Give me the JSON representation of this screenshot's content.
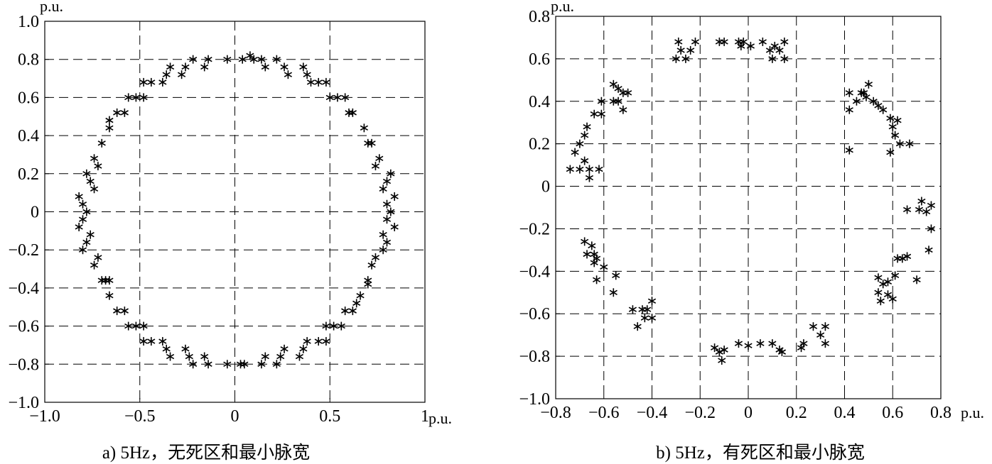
{
  "chart_data": [
    {
      "type": "scatter",
      "caption": "a) 5Hz，无死区和最小脉宽",
      "xunit": "p.u.",
      "yunit": "p.u.",
      "xlim": [
        -1.0,
        1.0
      ],
      "ylim": [
        -1.0,
        1.0
      ],
      "xticks": [
        -1.0,
        -0.5,
        0,
        0.5,
        1.0
      ],
      "xtick_labels": [
        "−1.0",
        "−0.5",
        "0",
        "0.5",
        "1"
      ],
      "yticks": [
        1.0,
        0.8,
        0.6,
        0.4,
        0.2,
        0,
        -0.2,
        -0.4,
        -0.6,
        -0.8,
        -1.0
      ],
      "ytick_labels": [
        "1.0",
        "0.8",
        "0.6",
        "0.4",
        "0.2",
        "0",
        "−0.2",
        "−0.4",
        "−0.6",
        "−0.8",
        "−1.0"
      ],
      "grid": true,
      "marker": "*",
      "points": [
        [
          0.08,
          0.82
        ],
        [
          0.04,
          0.8
        ],
        [
          -0.04,
          0.8
        ],
        [
          -0.14,
          0.8
        ],
        [
          -0.22,
          0.8
        ],
        [
          -0.16,
          0.76
        ],
        [
          -0.26,
          0.76
        ],
        [
          -0.28,
          0.72
        ],
        [
          -0.34,
          0.76
        ],
        [
          -0.36,
          0.72
        ],
        [
          -0.38,
          0.68
        ],
        [
          -0.44,
          0.68
        ],
        [
          -0.48,
          0.68
        ],
        [
          -0.48,
          0.6
        ],
        [
          -0.52,
          0.6
        ],
        [
          -0.56,
          0.6
        ],
        [
          -0.58,
          0.52
        ],
        [
          -0.62,
          0.52
        ],
        [
          -0.66,
          0.48
        ],
        [
          -0.66,
          0.44
        ],
        [
          -0.7,
          0.36
        ],
        [
          -0.74,
          0.28
        ],
        [
          -0.72,
          0.24
        ],
        [
          -0.78,
          0.2
        ],
        [
          -0.76,
          0.16
        ],
        [
          -0.74,
          0.12
        ],
        [
          -0.82,
          0.08
        ],
        [
          -0.8,
          0.04
        ],
        [
          -0.78,
          0.0
        ],
        [
          -0.8,
          -0.04
        ],
        [
          -0.82,
          -0.08
        ],
        [
          -0.76,
          -0.12
        ],
        [
          -0.78,
          -0.16
        ],
        [
          -0.8,
          -0.2
        ],
        [
          -0.72,
          -0.24
        ],
        [
          -0.74,
          -0.28
        ],
        [
          -0.7,
          -0.36
        ],
        [
          -0.68,
          -0.36
        ],
        [
          -0.66,
          -0.36
        ],
        [
          -0.66,
          -0.44
        ],
        [
          -0.62,
          -0.52
        ],
        [
          -0.58,
          -0.52
        ],
        [
          -0.56,
          -0.6
        ],
        [
          -0.52,
          -0.6
        ],
        [
          -0.48,
          -0.6
        ],
        [
          -0.48,
          -0.68
        ],
        [
          -0.44,
          -0.68
        ],
        [
          -0.38,
          -0.68
        ],
        [
          -0.36,
          -0.72
        ],
        [
          -0.34,
          -0.76
        ],
        [
          -0.26,
          -0.72
        ],
        [
          -0.24,
          -0.76
        ],
        [
          -0.22,
          -0.8
        ],
        [
          -0.16,
          -0.76
        ],
        [
          -0.14,
          -0.8
        ],
        [
          -0.04,
          -0.8
        ],
        [
          0.03,
          -0.8
        ],
        [
          0.05,
          -0.8
        ],
        [
          0.14,
          -0.8
        ],
        [
          0.16,
          -0.76
        ],
        [
          0.22,
          -0.8
        ],
        [
          0.24,
          -0.76
        ],
        [
          0.26,
          -0.72
        ],
        [
          0.34,
          -0.76
        ],
        [
          0.36,
          -0.72
        ],
        [
          0.38,
          -0.68
        ],
        [
          0.44,
          -0.68
        ],
        [
          0.48,
          -0.68
        ],
        [
          0.48,
          -0.6
        ],
        [
          0.52,
          -0.6
        ],
        [
          0.56,
          -0.6
        ],
        [
          0.58,
          -0.52
        ],
        [
          0.62,
          -0.52
        ],
        [
          0.64,
          -0.48
        ],
        [
          0.66,
          -0.44
        ],
        [
          0.7,
          -0.36
        ],
        [
          0.7,
          -0.38
        ],
        [
          0.72,
          -0.28
        ],
        [
          0.74,
          -0.24
        ],
        [
          0.78,
          -0.2
        ],
        [
          0.8,
          -0.16
        ],
        [
          0.78,
          -0.12
        ],
        [
          0.84,
          -0.08
        ],
        [
          0.8,
          -0.04
        ],
        [
          0.82,
          0.0
        ],
        [
          0.8,
          0.04
        ],
        [
          0.84,
          0.08
        ],
        [
          0.78,
          0.12
        ],
        [
          0.8,
          0.16
        ],
        [
          0.82,
          0.2
        ],
        [
          0.74,
          0.24
        ],
        [
          0.76,
          0.28
        ],
        [
          0.7,
          0.36
        ],
        [
          0.72,
          0.36
        ],
        [
          0.68,
          0.44
        ],
        [
          0.62,
          0.52
        ],
        [
          0.6,
          0.52
        ],
        [
          0.58,
          0.6
        ],
        [
          0.54,
          0.6
        ],
        [
          0.5,
          0.6
        ],
        [
          0.48,
          0.68
        ],
        [
          0.44,
          0.68
        ],
        [
          0.4,
          0.68
        ],
        [
          0.38,
          0.72
        ],
        [
          0.36,
          0.76
        ],
        [
          0.28,
          0.72
        ],
        [
          0.26,
          0.76
        ],
        [
          0.22,
          0.8
        ],
        [
          0.16,
          0.76
        ],
        [
          0.14,
          0.8
        ],
        [
          0.1,
          0.8
        ]
      ]
    },
    {
      "type": "scatter",
      "caption": "b) 5Hz，有死区和最小脉宽",
      "xunit": "p.u.",
      "yunit": "p.u.",
      "xlim": [
        -0.8,
        0.8
      ],
      "ylim": [
        -1.0,
        0.8
      ],
      "xticks": [
        -0.8,
        -0.6,
        -0.4,
        -0.2,
        0,
        0.2,
        0.4,
        0.6,
        0.8
      ],
      "xtick_labels": [
        "−0.8",
        "−0.6",
        "−0.4",
        "−0.2",
        "0",
        "0.2",
        "0.4",
        "0.6",
        "0.8"
      ],
      "yticks": [
        0.8,
        0.6,
        0.4,
        0.2,
        0,
        -0.2,
        -0.4,
        -0.6,
        -0.8,
        -1.0
      ],
      "ytick_labels": [
        "0.8",
        "0.6",
        "0.4",
        "0.2",
        "0",
        "−0.2",
        "−0.4",
        "−0.6",
        "−0.8",
        "−1.0"
      ],
      "grid": true,
      "marker": "*",
      "points": [
        [
          -0.29,
          0.68
        ],
        [
          -0.28,
          0.64
        ],
        [
          -0.3,
          0.6
        ],
        [
          -0.26,
          0.6
        ],
        [
          -0.24,
          0.64
        ],
        [
          -0.22,
          0.68
        ],
        [
          -0.12,
          0.68
        ],
        [
          -0.1,
          0.68
        ],
        [
          -0.04,
          0.68
        ],
        [
          -0.02,
          0.68
        ],
        [
          -0.03,
          0.66
        ],
        [
          0.01,
          0.66
        ],
        [
          0.06,
          0.68
        ],
        [
          0.09,
          0.64
        ],
        [
          0.11,
          0.66
        ],
        [
          0.13,
          0.64
        ],
        [
          0.15,
          0.68
        ],
        [
          0.1,
          0.6
        ],
        [
          0.15,
          0.6
        ],
        [
          -0.56,
          0.48
        ],
        [
          -0.54,
          0.46
        ],
        [
          -0.52,
          0.44
        ],
        [
          -0.5,
          0.44
        ],
        [
          -0.54,
          0.4
        ],
        [
          -0.56,
          0.4
        ],
        [
          -0.61,
          0.4
        ],
        [
          -0.52,
          0.36
        ],
        [
          -0.64,
          0.34
        ],
        [
          -0.61,
          0.34
        ],
        [
          -0.67,
          0.28
        ],
        [
          -0.68,
          0.24
        ],
        [
          -0.7,
          0.2
        ],
        [
          -0.72,
          0.16
        ],
        [
          -0.68,
          0.12
        ],
        [
          -0.74,
          0.08
        ],
        [
          -0.7,
          0.08
        ],
        [
          -0.66,
          0.08
        ],
        [
          -0.62,
          0.08
        ],
        [
          -0.66,
          0.04
        ],
        [
          0.42,
          0.44
        ],
        [
          0.45,
          0.4
        ],
        [
          0.47,
          0.44
        ],
        [
          0.49,
          0.42
        ],
        [
          0.5,
          0.48
        ],
        [
          0.48,
          0.44
        ],
        [
          0.52,
          0.4
        ],
        [
          0.54,
          0.38
        ],
        [
          0.56,
          0.36
        ],
        [
          0.59,
          0.32
        ],
        [
          0.62,
          0.31
        ],
        [
          0.6,
          0.28
        ],
        [
          0.61,
          0.24
        ],
        [
          0.63,
          0.2
        ],
        [
          0.67,
          0.2
        ],
        [
          0.59,
          0.16
        ],
        [
          0.42,
          0.36
        ],
        [
          0.42,
          0.17
        ],
        [
          -0.68,
          -0.26
        ],
        [
          -0.65,
          -0.28
        ],
        [
          -0.67,
          -0.32
        ],
        [
          -0.64,
          -0.32
        ],
        [
          -0.63,
          -0.34
        ],
        [
          -0.64,
          -0.36
        ],
        [
          -0.6,
          -0.38
        ],
        [
          -0.55,
          -0.42
        ],
        [
          -0.63,
          -0.44
        ],
        [
          -0.56,
          -0.5
        ],
        [
          -0.48,
          -0.58
        ],
        [
          -0.4,
          -0.54
        ],
        [
          -0.42,
          -0.58
        ],
        [
          -0.44,
          -0.58
        ],
        [
          -0.43,
          -0.62
        ],
        [
          -0.4,
          -0.62
        ],
        [
          -0.46,
          -0.66
        ],
        [
          0.66,
          -0.11
        ],
        [
          0.71,
          -0.11
        ],
        [
          0.74,
          -0.12
        ],
        [
          0.72,
          -0.07
        ],
        [
          0.76,
          -0.09
        ],
        [
          0.76,
          -0.2
        ],
        [
          0.75,
          -0.3
        ],
        [
          0.62,
          -0.34
        ],
        [
          0.64,
          -0.34
        ],
        [
          0.66,
          -0.33
        ],
        [
          0.61,
          -0.42
        ],
        [
          0.54,
          -0.43
        ],
        [
          0.56,
          -0.46
        ],
        [
          0.58,
          -0.45
        ],
        [
          0.54,
          -0.5
        ],
        [
          0.58,
          -0.51
        ],
        [
          0.55,
          -0.54
        ],
        [
          0.6,
          -0.53
        ],
        [
          0.7,
          -0.44
        ],
        [
          -0.14,
          -0.76
        ],
        [
          -0.12,
          -0.78
        ],
        [
          -0.1,
          -0.77
        ],
        [
          -0.11,
          -0.82
        ],
        [
          -0.04,
          -0.74
        ],
        [
          0.0,
          -0.75
        ],
        [
          0.05,
          -0.74
        ],
        [
          0.1,
          -0.74
        ],
        [
          0.13,
          -0.77
        ],
        [
          0.14,
          -0.78
        ],
        [
          0.22,
          -0.76
        ],
        [
          0.23,
          -0.74
        ],
        [
          0.27,
          -0.66
        ],
        [
          0.3,
          -0.7
        ],
        [
          0.32,
          -0.66
        ],
        [
          0.32,
          -0.74
        ]
      ]
    }
  ]
}
